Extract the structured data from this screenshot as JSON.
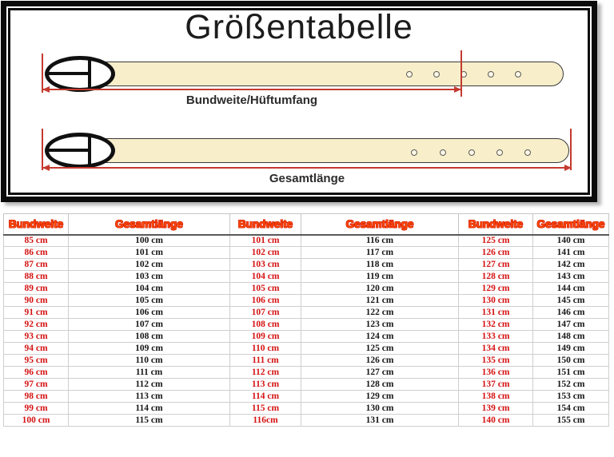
{
  "diagram": {
    "title": "Größentabelle",
    "top_label": "Bundweite/Hüftumfang",
    "bottom_label": "Gesamtlänge",
    "colors": {
      "strap": "#f8eeca",
      "buckle": "#101010",
      "measure_line": "#c43a2e",
      "frame": "#0b0b0b"
    }
  },
  "table": {
    "colors": {
      "header_text": "#ff4a00",
      "header_outline": "#cf1400",
      "bundweite_text": "#d51212",
      "gesamtlaenge_text": "#161616",
      "grid": "#cfcfcf"
    },
    "groups": [
      {
        "headers": [
          "Bundweite",
          "Gesamtlänge"
        ],
        "rows": [
          [
            "85 cm",
            "100 cm"
          ],
          [
            "86 cm",
            "101 cm"
          ],
          [
            "87 cm",
            "102 cm"
          ],
          [
            "88 cm",
            "103 cm"
          ],
          [
            "89 cm",
            "104 cm"
          ],
          [
            "90 cm",
            "105 cm"
          ],
          [
            "91 cm",
            "106 cm"
          ],
          [
            "92 cm",
            "107 cm"
          ],
          [
            "93 cm",
            "108 cm"
          ],
          [
            "94 cm",
            "109 cm"
          ],
          [
            "95 cm",
            "110 cm"
          ],
          [
            "96 cm",
            "111 cm"
          ],
          [
            "97 cm",
            "112 cm"
          ],
          [
            "98 cm",
            "113 cm"
          ],
          [
            "99 cm",
            "114 cm"
          ],
          [
            "100 cm",
            "115 cm"
          ]
        ]
      },
      {
        "headers": [
          "Bundweite",
          "Gesamtlänge"
        ],
        "rows": [
          [
            "101 cm",
            "116 cm"
          ],
          [
            "102 cm",
            "117 cm"
          ],
          [
            "103 cm",
            "118 cm"
          ],
          [
            "104 cm",
            "119 cm"
          ],
          [
            "105 cm",
            "120 cm"
          ],
          [
            "106 cm",
            "121 cm"
          ],
          [
            "107 cm",
            "122 cm"
          ],
          [
            "108 cm",
            "123 cm"
          ],
          [
            "109 cm",
            "124 cm"
          ],
          [
            "110 cm",
            "125 cm"
          ],
          [
            "111 cm",
            "126 cm"
          ],
          [
            "112 cm",
            "127 cm"
          ],
          [
            "113 cm",
            "128 cm"
          ],
          [
            "114 cm",
            "129 cm"
          ],
          [
            "115 cm",
            "130 cm"
          ],
          [
            "116cm",
            "131 cm"
          ]
        ]
      },
      {
        "headers": [
          "Bundweite",
          "Gesamtlänge"
        ],
        "rows": [
          [
            "125 cm",
            "140 cm"
          ],
          [
            "126 cm",
            "141 cm"
          ],
          [
            "127 cm",
            "142 cm"
          ],
          [
            "128 cm",
            "143 cm"
          ],
          [
            "129 cm",
            "144 cm"
          ],
          [
            "130 cm",
            "145 cm"
          ],
          [
            "131 cm",
            "146 cm"
          ],
          [
            "132 cm",
            "147 cm"
          ],
          [
            "133 cm",
            "148 cm"
          ],
          [
            "134 cm",
            "149 cm"
          ],
          [
            "135 cm",
            "150 cm"
          ],
          [
            "136 cm",
            "151 cm"
          ],
          [
            "137 cm",
            "152 cm"
          ],
          [
            "138 cm",
            "153 cm"
          ],
          [
            "139 cm",
            "154 cm"
          ],
          [
            "140 cm",
            "155 cm"
          ]
        ]
      }
    ]
  }
}
